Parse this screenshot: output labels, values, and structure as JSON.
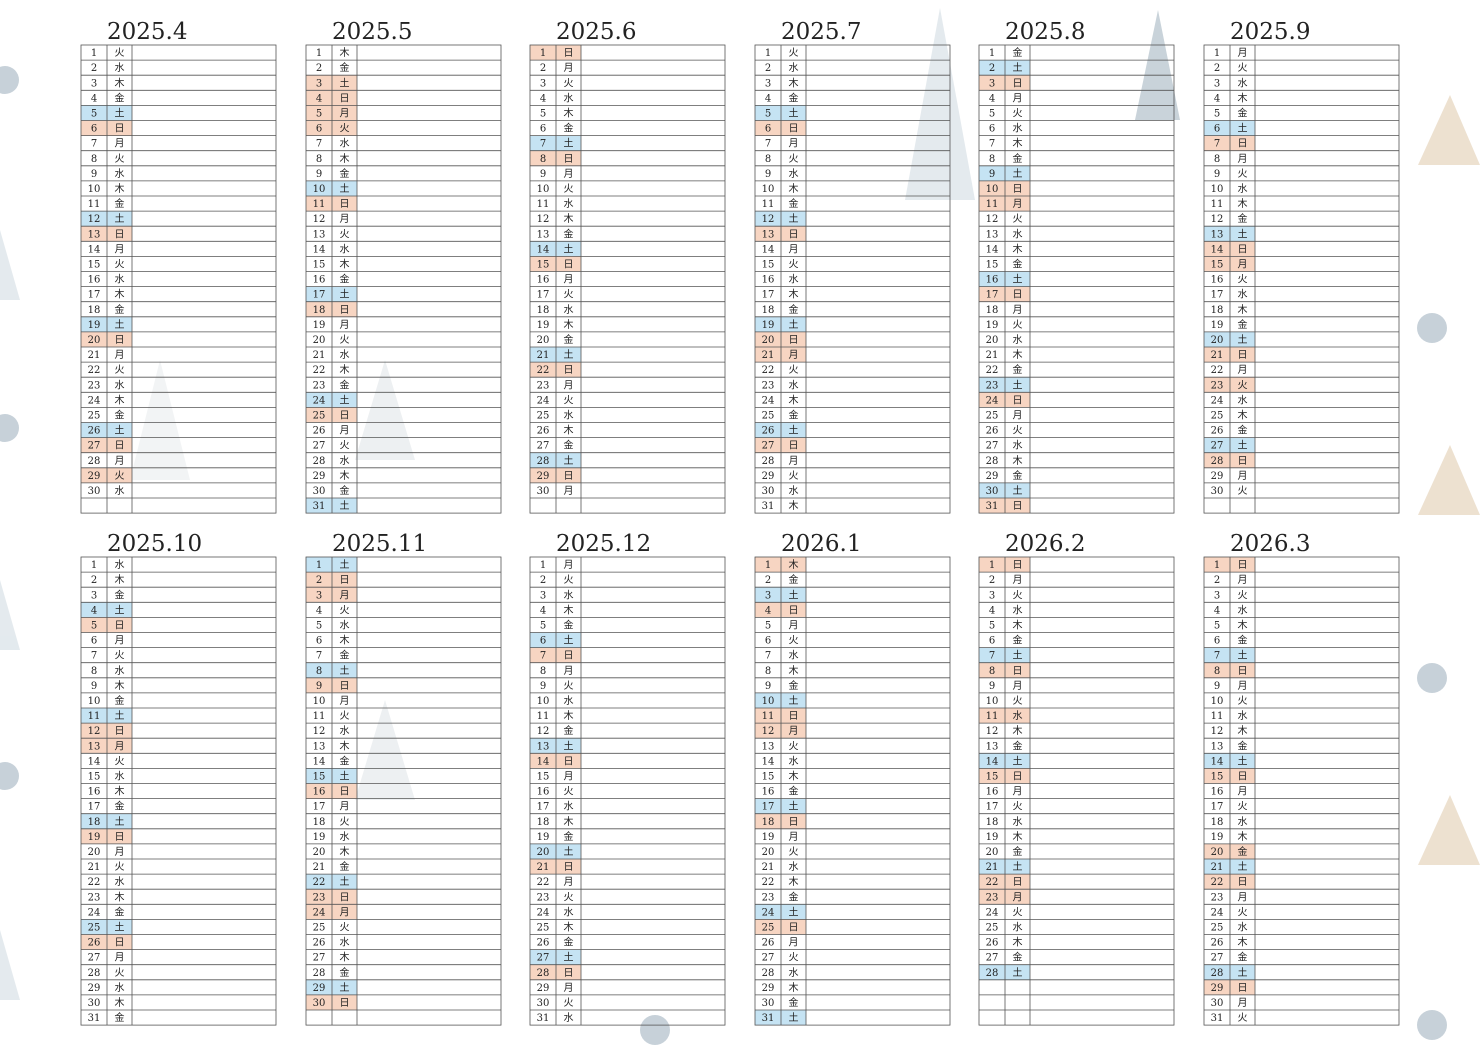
{
  "highlight": {
    "blue": "#c5e3f3",
    "orange": "#f7d5c2"
  },
  "months": [
    {
      "title": "2025.4",
      "days": [
        1,
        2,
        3,
        4,
        5,
        6,
        7,
        8,
        9,
        10,
        11,
        12,
        13,
        14,
        15,
        16,
        17,
        18,
        19,
        20,
        21,
        22,
        23,
        24,
        25,
        26,
        27,
        28,
        29,
        30
      ],
      "weekdays": [
        "火",
        "水",
        "木",
        "金",
        "土",
        "日",
        "月",
        "火",
        "水",
        "木",
        "金",
        "土",
        "日",
        "月",
        "火",
        "水",
        "木",
        "金",
        "土",
        "日",
        "月",
        "火",
        "水",
        "木",
        "金",
        "土",
        "日",
        "月",
        "火",
        "水"
      ],
      "blue_days": [
        5,
        12,
        19,
        26
      ],
      "orange_days": [
        6,
        13,
        20,
        27,
        29
      ]
    },
    {
      "title": "2025.5",
      "days": [
        1,
        2,
        3,
        4,
        5,
        6,
        7,
        8,
        9,
        10,
        11,
        12,
        13,
        14,
        15,
        16,
        17,
        18,
        19,
        20,
        21,
        22,
        23,
        24,
        25,
        26,
        27,
        28,
        29,
        30,
        31
      ],
      "weekdays": [
        "木",
        "金",
        "土",
        "日",
        "月",
        "火",
        "水",
        "木",
        "金",
        "土",
        "日",
        "月",
        "火",
        "水",
        "木",
        "金",
        "土",
        "日",
        "月",
        "火",
        "水",
        "木",
        "金",
        "土",
        "日",
        "月",
        "火",
        "水",
        "木",
        "金",
        "土"
      ],
      "blue_days": [
        10,
        17,
        24,
        31
      ],
      "orange_days": [
        3,
        4,
        5,
        6,
        11,
        18,
        25
      ]
    },
    {
      "title": "2025.6",
      "days": [
        1,
        2,
        3,
        4,
        5,
        6,
        7,
        8,
        9,
        10,
        11,
        12,
        13,
        14,
        15,
        16,
        17,
        18,
        19,
        20,
        21,
        22,
        23,
        24,
        25,
        26,
        27,
        28,
        29,
        30
      ],
      "weekdays": [
        "日",
        "月",
        "火",
        "水",
        "木",
        "金",
        "土",
        "日",
        "月",
        "火",
        "水",
        "木",
        "金",
        "土",
        "日",
        "月",
        "火",
        "水",
        "木",
        "金",
        "土",
        "日",
        "月",
        "火",
        "水",
        "木",
        "金",
        "土",
        "日",
        "月"
      ],
      "blue_days": [
        7,
        14,
        21,
        28
      ],
      "orange_days": [
        1,
        8,
        15,
        22,
        29
      ]
    },
    {
      "title": "2025.7",
      "days": [
        1,
        2,
        3,
        4,
        5,
        6,
        7,
        8,
        9,
        10,
        11,
        12,
        13,
        14,
        15,
        16,
        17,
        18,
        19,
        20,
        21,
        22,
        23,
        24,
        25,
        26,
        27,
        28,
        29,
        30,
        31
      ],
      "weekdays": [
        "火",
        "水",
        "木",
        "金",
        "土",
        "日",
        "月",
        "火",
        "水",
        "木",
        "金",
        "土",
        "日",
        "月",
        "火",
        "水",
        "木",
        "金",
        "土",
        "日",
        "月",
        "火",
        "水",
        "木",
        "金",
        "土",
        "日",
        "月",
        "火",
        "水",
        "木"
      ],
      "blue_days": [
        5,
        12,
        19,
        26
      ],
      "orange_days": [
        6,
        13,
        20,
        21,
        27
      ]
    },
    {
      "title": "2025.8",
      "days": [
        1,
        2,
        3,
        4,
        5,
        6,
        7,
        8,
        9,
        10,
        11,
        12,
        13,
        14,
        15,
        16,
        17,
        18,
        19,
        20,
        21,
        22,
        23,
        24,
        25,
        26,
        27,
        28,
        29,
        30,
        31
      ],
      "weekdays": [
        "金",
        "土",
        "日",
        "月",
        "火",
        "水",
        "木",
        "金",
        "土",
        "日",
        "月",
        "火",
        "水",
        "木",
        "金",
        "土",
        "日",
        "月",
        "火",
        "水",
        "木",
        "金",
        "土",
        "日",
        "月",
        "火",
        "水",
        "木",
        "金",
        "土",
        "日"
      ],
      "blue_days": [
        2,
        9,
        16,
        23,
        30
      ],
      "orange_days": [
        3,
        10,
        11,
        17,
        24,
        31
      ]
    },
    {
      "title": "2025.9",
      "days": [
        1,
        2,
        3,
        4,
        5,
        6,
        7,
        8,
        9,
        10,
        11,
        12,
        13,
        14,
        15,
        16,
        17,
        18,
        19,
        20,
        21,
        22,
        23,
        24,
        25,
        26,
        27,
        28,
        29,
        30
      ],
      "weekdays": [
        "月",
        "火",
        "水",
        "木",
        "金",
        "土",
        "日",
        "月",
        "火",
        "水",
        "木",
        "金",
        "土",
        "日",
        "月",
        "火",
        "水",
        "木",
        "金",
        "土",
        "日",
        "月",
        "火",
        "水",
        "木",
        "金",
        "土",
        "日",
        "月",
        "火"
      ],
      "blue_days": [
        6,
        13,
        20,
        27
      ],
      "orange_days": [
        7,
        14,
        15,
        21,
        23,
        28
      ]
    },
    {
      "title": "2025.10",
      "days": [
        1,
        2,
        3,
        4,
        5,
        6,
        7,
        8,
        9,
        10,
        11,
        12,
        13,
        14,
        15,
        16,
        17,
        18,
        19,
        20,
        21,
        22,
        23,
        24,
        25,
        26,
        27,
        28,
        29,
        30,
        31
      ],
      "weekdays": [
        "水",
        "木",
        "金",
        "土",
        "日",
        "月",
        "火",
        "水",
        "木",
        "金",
        "土",
        "日",
        "月",
        "火",
        "水",
        "木",
        "金",
        "土",
        "日",
        "月",
        "火",
        "水",
        "木",
        "金",
        "土",
        "日",
        "月",
        "火",
        "水",
        "木",
        "金"
      ],
      "blue_days": [
        4,
        11,
        18,
        25
      ],
      "orange_days": [
        5,
        12,
        13,
        19,
        26
      ]
    },
    {
      "title": "2025.11",
      "days": [
        1,
        2,
        3,
        4,
        5,
        6,
        7,
        8,
        9,
        10,
        11,
        12,
        13,
        14,
        15,
        16,
        17,
        18,
        19,
        20,
        21,
        22,
        23,
        24,
        25,
        26,
        27,
        28,
        29,
        30
      ],
      "weekdays": [
        "土",
        "日",
        "月",
        "火",
        "水",
        "木",
        "金",
        "土",
        "日",
        "月",
        "火",
        "水",
        "木",
        "金",
        "土",
        "日",
        "月",
        "火",
        "水",
        "木",
        "金",
        "土",
        "日",
        "月",
        "火",
        "水",
        "木",
        "金",
        "土",
        "日"
      ],
      "blue_days": [
        1,
        8,
        15,
        22,
        29
      ],
      "orange_days": [
        2,
        3,
        9,
        16,
        23,
        24,
        30
      ]
    },
    {
      "title": "2025.12",
      "days": [
        1,
        2,
        3,
        4,
        5,
        6,
        7,
        8,
        9,
        10,
        11,
        12,
        13,
        14,
        15,
        16,
        17,
        18,
        19,
        20,
        21,
        22,
        23,
        24,
        25,
        26,
        27,
        28,
        29,
        30,
        31
      ],
      "weekdays": [
        "月",
        "火",
        "水",
        "木",
        "金",
        "土",
        "日",
        "月",
        "火",
        "水",
        "木",
        "金",
        "土",
        "日",
        "月",
        "火",
        "水",
        "木",
        "金",
        "土",
        "日",
        "月",
        "火",
        "水",
        "木",
        "金",
        "土",
        "日",
        "月",
        "火",
        "水"
      ],
      "blue_days": [
        6,
        13,
        20,
        27
      ],
      "orange_days": [
        7,
        14,
        21,
        28
      ]
    },
    {
      "title": "2026.1",
      "days": [
        1,
        2,
        3,
        4,
        5,
        6,
        7,
        8,
        9,
        10,
        11,
        12,
        13,
        14,
        15,
        16,
        17,
        18,
        19,
        20,
        21,
        22,
        23,
        24,
        25,
        26,
        27,
        28,
        29,
        30,
        31
      ],
      "weekdays": [
        "木",
        "金",
        "土",
        "日",
        "月",
        "火",
        "水",
        "木",
        "金",
        "土",
        "日",
        "月",
        "火",
        "水",
        "木",
        "金",
        "土",
        "日",
        "月",
        "火",
        "水",
        "木",
        "金",
        "土",
        "日",
        "月",
        "火",
        "水",
        "木",
        "金",
        "土"
      ],
      "blue_days": [
        3,
        10,
        17,
        24,
        31
      ],
      "orange_days": [
        1,
        4,
        11,
        12,
        18,
        25
      ]
    },
    {
      "title": "2026.2",
      "days": [
        1,
        2,
        3,
        4,
        5,
        6,
        7,
        8,
        9,
        10,
        11,
        12,
        13,
        14,
        15,
        16,
        17,
        18,
        19,
        20,
        21,
        22,
        23,
        24,
        25,
        26,
        27,
        28
      ],
      "weekdays": [
        "日",
        "月",
        "火",
        "水",
        "木",
        "金",
        "土",
        "日",
        "月",
        "火",
        "水",
        "木",
        "金",
        "土",
        "日",
        "月",
        "火",
        "水",
        "木",
        "金",
        "土",
        "日",
        "月",
        "火",
        "水",
        "木",
        "金",
        "土"
      ],
      "blue_days": [
        7,
        14,
        21,
        28
      ],
      "orange_days": [
        1,
        8,
        11,
        15,
        22,
        23
      ]
    },
    {
      "title": "2026.3",
      "days": [
        1,
        2,
        3,
        4,
        5,
        6,
        7,
        8,
        9,
        10,
        11,
        12,
        13,
        14,
        15,
        16,
        17,
        18,
        19,
        20,
        21,
        22,
        23,
        24,
        25,
        26,
        27,
        28,
        29,
        30,
        31
      ],
      "weekdays": [
        "日",
        "月",
        "火",
        "水",
        "木",
        "金",
        "土",
        "日",
        "月",
        "火",
        "水",
        "木",
        "金",
        "土",
        "日",
        "月",
        "火",
        "水",
        "木",
        "金",
        "土",
        "日",
        "月",
        "火",
        "水",
        "木",
        "金",
        "土",
        "日",
        "月",
        "火"
      ],
      "blue_days": [
        7,
        14,
        21,
        28
      ],
      "orange_days": [
        1,
        8,
        15,
        20,
        22,
        29
      ]
    }
  ]
}
